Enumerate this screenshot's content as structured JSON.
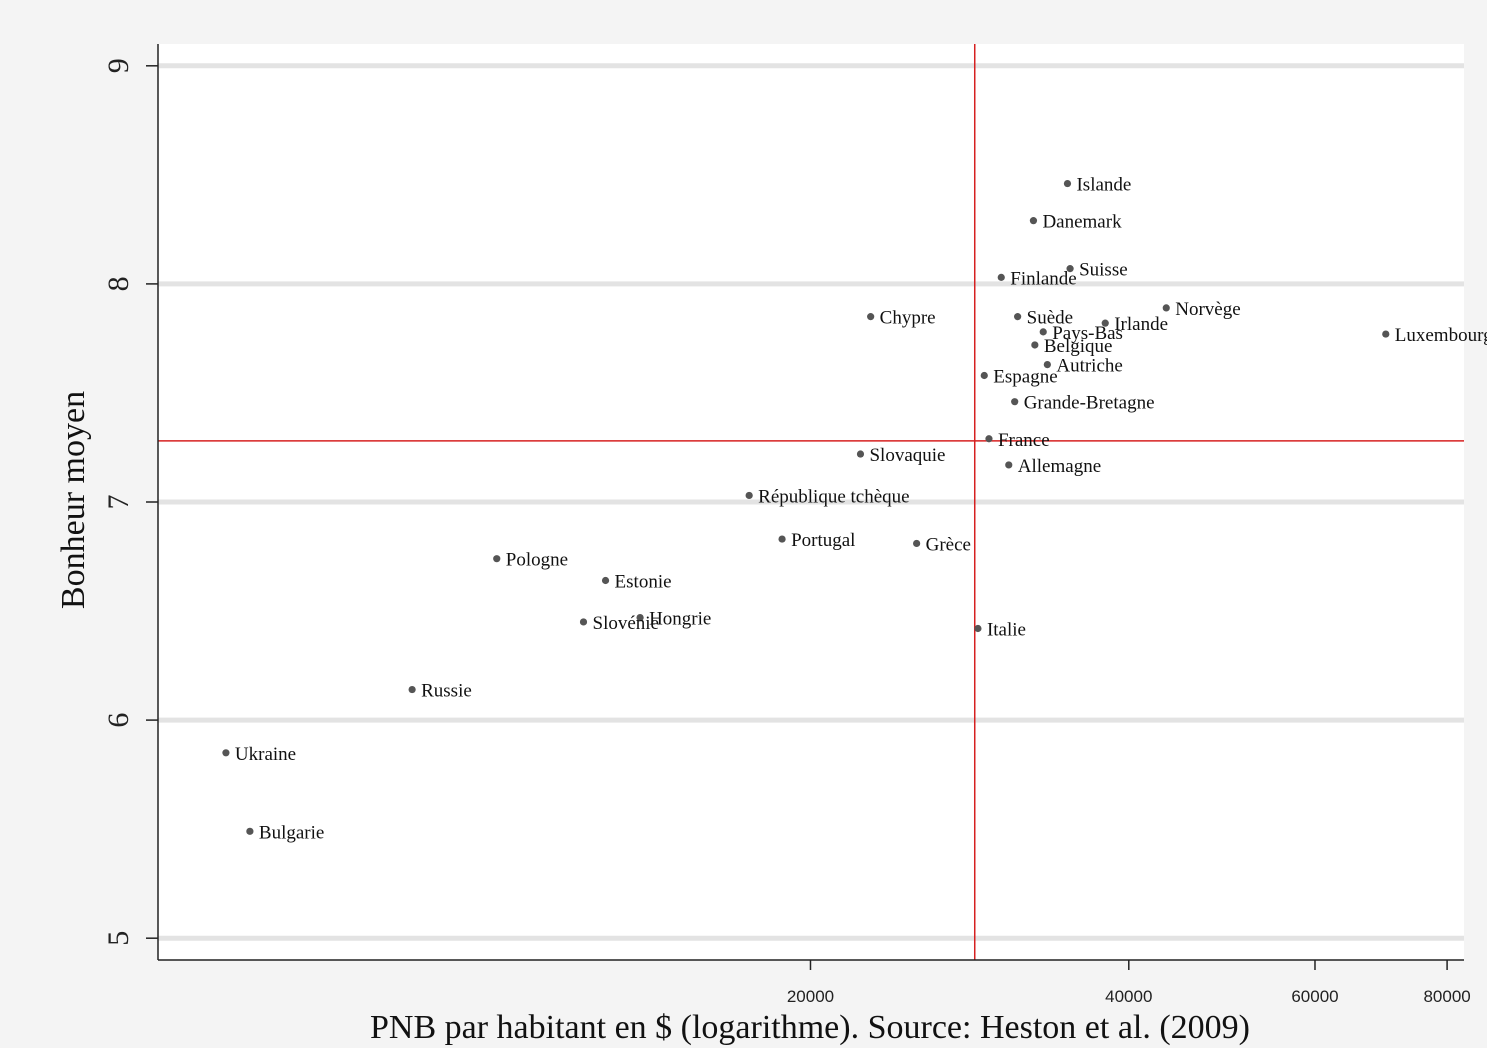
{
  "chart_data": {
    "type": "scatter",
    "title": "",
    "xlabel": "PNB par habitant en $ (logarithme). Source: Heston et al. (2009)",
    "ylabel": "Bonheur moyen",
    "xscale": "log",
    "xlim": [
      4830,
      83000
    ],
    "ylim": [
      4.9,
      9.1
    ],
    "xticks": [
      20000,
      40000,
      60000,
      80000
    ],
    "xtick_labels": [
      "20000",
      "40000",
      "60000",
      "80000"
    ],
    "yticks": [
      5,
      6,
      7,
      8,
      9
    ],
    "ytick_labels": [
      "5",
      "6",
      "7",
      "8",
      "9"
    ],
    "grid": "horizontal",
    "reference_lines": {
      "x": 28600,
      "y": 7.28,
      "color": "#d62020"
    },
    "point_color": "#555555",
    "points": [
      {
        "label": "Islande",
        "x": 35000,
        "y": 8.46
      },
      {
        "label": "Danemark",
        "x": 32500,
        "y": 8.29
      },
      {
        "label": "Suisse",
        "x": 35200,
        "y": 8.07
      },
      {
        "label": "Finlande",
        "x": 30300,
        "y": 8.03
      },
      {
        "label": "Norvège",
        "x": 43400,
        "y": 7.89
      },
      {
        "label": "Chypre",
        "x": 22800,
        "y": 7.85
      },
      {
        "label": "Suède",
        "x": 31400,
        "y": 7.85
      },
      {
        "label": "Irlande",
        "x": 38000,
        "y": 7.82
      },
      {
        "label": "Pays-Bas",
        "x": 33200,
        "y": 7.78
      },
      {
        "label": "Luxembourg",
        "x": 70000,
        "y": 7.77
      },
      {
        "label": "Belgique",
        "x": 32600,
        "y": 7.72
      },
      {
        "label": "Autriche",
        "x": 33500,
        "y": 7.63
      },
      {
        "label": "Espagne",
        "x": 29200,
        "y": 7.58
      },
      {
        "label": "Grande-Bretagne",
        "x": 31200,
        "y": 7.46
      },
      {
        "label": "France",
        "x": 29500,
        "y": 7.29
      },
      {
        "label": "Slovaquie",
        "x": 22300,
        "y": 7.22
      },
      {
        "label": "Allemagne",
        "x": 30800,
        "y": 7.17
      },
      {
        "label": "République tchèque",
        "x": 17500,
        "y": 7.03
      },
      {
        "label": "Portugal",
        "x": 18800,
        "y": 6.83
      },
      {
        "label": "Grèce",
        "x": 25200,
        "y": 6.81
      },
      {
        "label": "Pologne",
        "x": 10100,
        "y": 6.74
      },
      {
        "label": "Estonie",
        "x": 12800,
        "y": 6.64
      },
      {
        "label": "Hongrie",
        "x": 13800,
        "y": 6.47
      },
      {
        "label": "Slovénie",
        "x": 12200,
        "y": 6.45
      },
      {
        "label": "Italie",
        "x": 28800,
        "y": 6.42
      },
      {
        "label": "Russie",
        "x": 8400,
        "y": 6.14
      },
      {
        "label": "Ukraine",
        "x": 5600,
        "y": 5.85
      },
      {
        "label": "Bulgarie",
        "x": 5900,
        "y": 5.49
      }
    ]
  }
}
